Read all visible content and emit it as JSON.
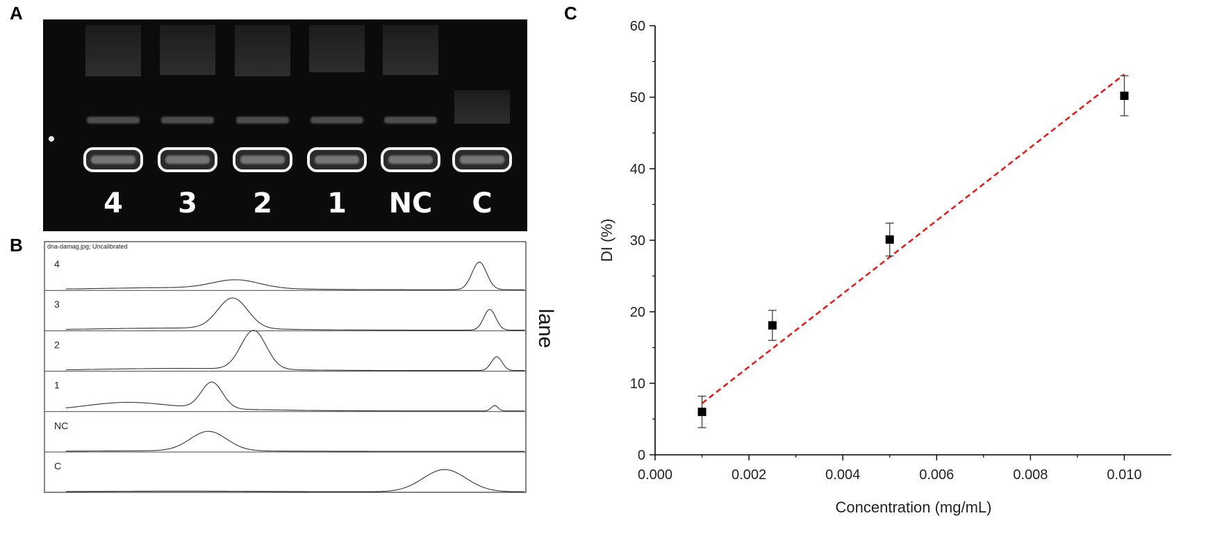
{
  "panels": {
    "a": {
      "letter": "A",
      "lane_labels": [
        "4",
        "3",
        "2",
        "1",
        "NC",
        "C"
      ]
    },
    "b": {
      "letter": "B",
      "header": "dna-damag.jpg; Uncalibrated",
      "row_labels": [
        "4",
        "3",
        "2",
        "1",
        "NC",
        "C"
      ],
      "axis_label": "lane"
    },
    "c": {
      "letter": "C"
    }
  },
  "chart_data": {
    "type": "scatter",
    "title": "",
    "xlabel": "Concentration (mg/mL)",
    "ylabel": "DI (%)",
    "xlim": [
      0.0,
      0.011
    ],
    "ylim": [
      0,
      60
    ],
    "x_ticks": [
      0.0,
      0.002,
      0.004,
      0.006,
      0.008,
      0.01
    ],
    "x_tick_labels": [
      "0.000",
      "0.002",
      "0.004",
      "0.006",
      "0.008",
      "0.010"
    ],
    "y_ticks": [
      0,
      10,
      20,
      30,
      40,
      50,
      60
    ],
    "y_tick_labels": [
      "0",
      "10",
      "20",
      "30",
      "40",
      "50",
      "60"
    ],
    "grid": false,
    "series": [
      {
        "name": "DI",
        "x": [
          0.001,
          0.0025,
          0.005,
          0.01
        ],
        "y": [
          6.0,
          18.1,
          30.1,
          50.2
        ],
        "error": [
          2.2,
          2.1,
          2.3,
          2.8
        ],
        "marker": "square",
        "color": "#000000"
      }
    ],
    "fit_line": {
      "x": [
        0.001,
        0.01
      ],
      "y": [
        7.2,
        53.2
      ],
      "color": "#e02020",
      "style": "dashed"
    }
  }
}
